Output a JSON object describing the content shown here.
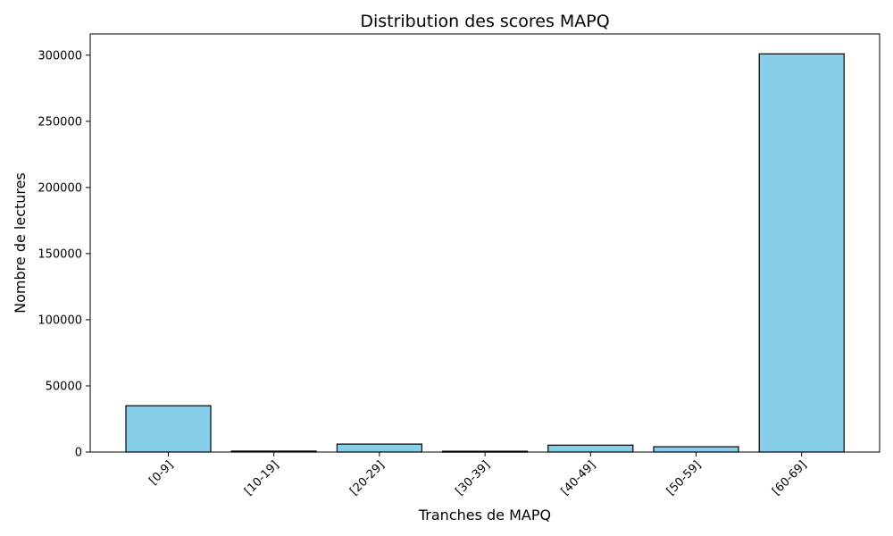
{
  "chart_data": {
    "type": "bar",
    "title": "Distribution des scores MAPQ",
    "xlabel": "Tranches de MAPQ",
    "ylabel": "Nombre de lectures",
    "categories": [
      "[0-9]",
      "[10-19]",
      "[20-29]",
      "[30-39]",
      "[40-49]",
      "[50-59]",
      "[60-69]"
    ],
    "values": [
      35000,
      700,
      6000,
      600,
      5200,
      4000,
      301000
    ],
    "ylim": [
      0,
      316050
    ],
    "yticks": [
      0,
      50000,
      100000,
      150000,
      200000,
      250000,
      300000
    ],
    "bar_color": "#87ceeb",
    "edge_color": "#000000",
    "grid": false
  }
}
